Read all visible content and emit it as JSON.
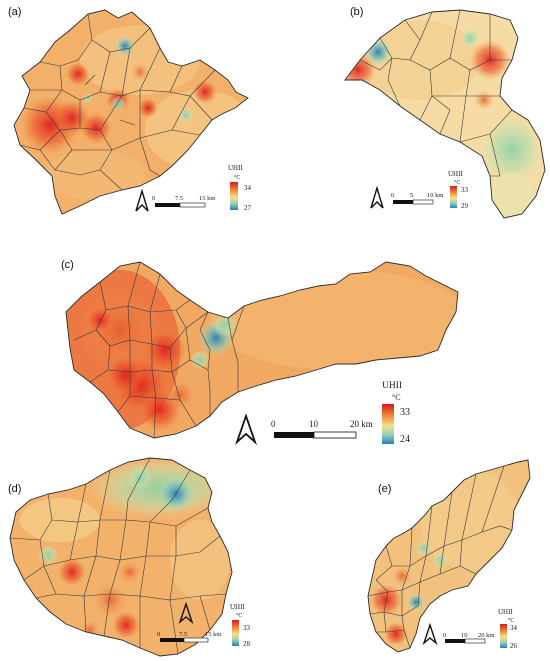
{
  "figure": {
    "panels": [
      {
        "id": "a",
        "label": "(a)",
        "legend": {
          "title": "UHII",
          "unit": "°C",
          "max": "34",
          "min": "27"
        },
        "scale": {
          "ticks": [
            "0",
            "7.5",
            "15 km"
          ]
        }
      },
      {
        "id": "b",
        "label": "(b)",
        "legend": {
          "title": "UHII",
          "unit": "°C",
          "max": "33",
          "min": "29"
        },
        "scale": {
          "ticks": [
            "0",
            "5",
            "10 km"
          ]
        }
      },
      {
        "id": "c",
        "label": "(c)",
        "legend": {
          "title": "UHII",
          "unit": "°C",
          "max": "33",
          "min": "24"
        },
        "scale": {
          "ticks": [
            "0",
            "10",
            "20 km"
          ]
        }
      },
      {
        "id": "d",
        "label": "(d)",
        "legend": {
          "title": "UHII",
          "unit": "°C",
          "max": "33",
          "min": "28"
        },
        "scale": {
          "ticks": [
            "0",
            "7.5",
            "15 km"
          ]
        }
      },
      {
        "id": "e",
        "label": "(e)",
        "legend": {
          "title": "UHII",
          "unit": "°C",
          "max": "34",
          "min": "26"
        },
        "scale": {
          "ticks": [
            "0",
            "10",
            "20 km"
          ]
        }
      }
    ],
    "colors": {
      "hot": "#e0302a",
      "warm": "#f09a4a",
      "mild": "#f5d79a",
      "cool": "#9fd3b5",
      "cold": "#2f7fbf",
      "boundary": "#3a3a3a"
    }
  }
}
